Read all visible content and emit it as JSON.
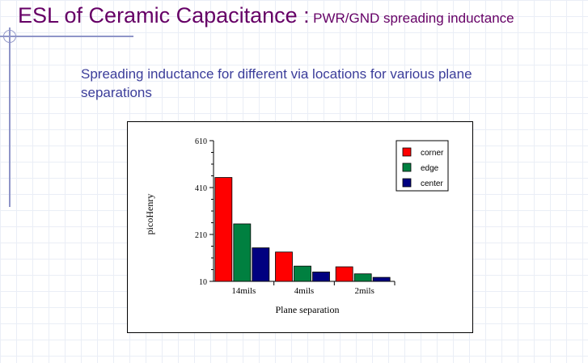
{
  "slide": {
    "title_main": "ESL of Ceramic Capacitance :",
    "title_sub": "PWR/GND spreading inductance",
    "subtitle": "Spreading inductance for different via locations for various plane separations"
  },
  "colors": {
    "title": "#660066",
    "subtitle": "#3b3d9a",
    "corner": "#ff0000",
    "edge": "#008040",
    "center": "#000080"
  },
  "chart_data": {
    "type": "bar",
    "title": "",
    "xlabel": "Plane separation",
    "ylabel": "picoHenry",
    "categories": [
      "14mils",
      "4mils",
      "2mils"
    ],
    "ylim": [
      10,
      610
    ],
    "yticks": [
      10,
      210,
      410,
      610
    ],
    "grid": false,
    "legend_position": "top-right",
    "series": [
      {
        "name": "corner",
        "color": "#ff0000",
        "values": [
          453,
          135,
          72
        ]
      },
      {
        "name": "edge",
        "color": "#008040",
        "values": [
          255,
          75,
          42
        ]
      },
      {
        "name": "center",
        "color": "#000080",
        "values": [
          153,
          50,
          27
        ]
      }
    ]
  }
}
